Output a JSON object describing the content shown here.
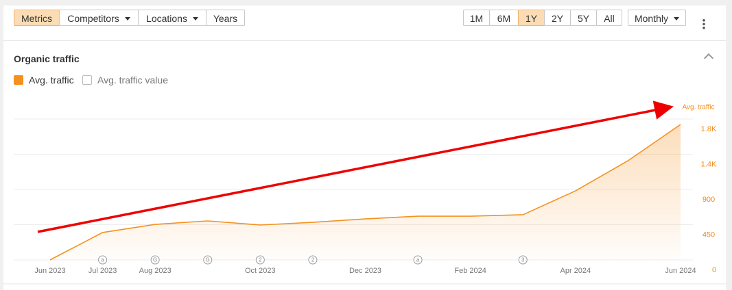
{
  "toolbar": {
    "tabs": [
      "Metrics",
      "Competitors",
      "Locations",
      "Years"
    ],
    "ranges": [
      "1M",
      "6M",
      "1Y",
      "2Y",
      "5Y",
      "All"
    ],
    "interval": "Monthly"
  },
  "panel": {
    "title": "Organic traffic",
    "checkboxes": [
      "Avg. traffic",
      "Avg. traffic value"
    ]
  },
  "chart_data": {
    "type": "area",
    "categories": [
      "Jun 2023",
      "Jul 2023",
      "Aug 2023",
      null,
      "Oct 2023",
      null,
      "Dec 2023",
      null,
      "Feb 2024",
      null,
      "Apr 2024",
      null,
      "Jun 2024"
    ],
    "series": [
      {
        "name": "Avg. traffic",
        "color": "#f5901e",
        "values": [
          0,
          350,
          454,
          498,
          446,
          480,
          524,
          559,
          559,
          577,
          882,
          1267,
          1730
        ]
      }
    ],
    "markers": [
      null,
      "a",
      "G",
      "G",
      "2",
      "2",
      null,
      "a",
      null,
      "3",
      null,
      null,
      null
    ],
    "ylim": [
      0,
      1800
    ],
    "yticks": [
      0,
      450,
      900,
      {
        "value": 1350,
        "label": "1.4K"
      },
      {
        "value": 1800,
        "label": "1.8K"
      }
    ],
    "grid": true
  }
}
